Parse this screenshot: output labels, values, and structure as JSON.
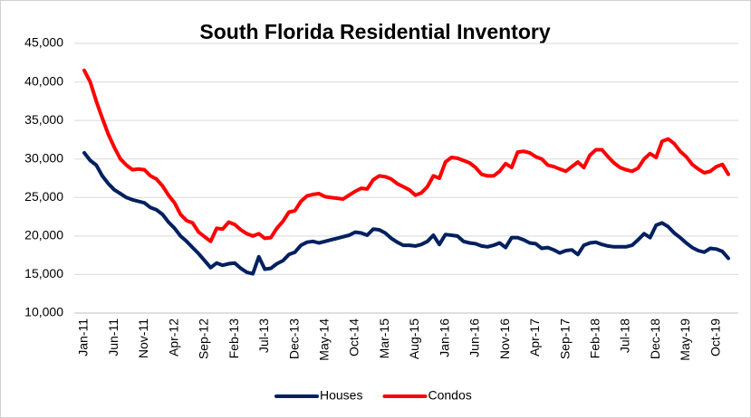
{
  "chart_data": {
    "type": "line",
    "title": "South Florida Residential Inventory",
    "categories": [
      "Jan-11",
      null,
      null,
      null,
      null,
      "Jun-11",
      null,
      null,
      null,
      null,
      "Nov-11",
      null,
      null,
      null,
      null,
      "Apr-12",
      null,
      null,
      null,
      null,
      "Sep-12",
      null,
      null,
      null,
      null,
      "Feb-13",
      null,
      null,
      null,
      null,
      "Jul-13",
      null,
      null,
      null,
      null,
      "Dec-13",
      null,
      null,
      null,
      null,
      "May-14",
      null,
      null,
      null,
      null,
      "Oct-14",
      null,
      null,
      null,
      null,
      "Mar-15",
      null,
      null,
      null,
      null,
      "Aug-15",
      null,
      null,
      null,
      null,
      "Jan-16",
      null,
      null,
      null,
      null,
      "Jun-16",
      null,
      null,
      null,
      null,
      "Nov-16",
      null,
      null,
      null,
      null,
      "Apr-17",
      null,
      null,
      null,
      null,
      "Sep-17",
      null,
      null,
      null,
      null,
      "Feb-18",
      null,
      null,
      null,
      null,
      "Jul-18",
      null,
      null,
      null,
      null,
      "Dec-18",
      null,
      null,
      null,
      null,
      "May-19",
      null,
      null,
      null,
      null,
      "Oct-19",
      null,
      null
    ],
    "series": [
      {
        "name": "Houses",
        "color": "#002060",
        "values": [
          30800,
          29800,
          29200,
          27800,
          26800,
          26000,
          25500,
          25000,
          24700,
          24500,
          24300,
          23700,
          23400,
          22800,
          21800,
          21000,
          20000,
          19300,
          18500,
          17700,
          16800,
          15900,
          16500,
          16200,
          16400,
          16500,
          15800,
          15300,
          15100,
          17300,
          15700,
          15800,
          16400,
          16800,
          17600,
          17900,
          18800,
          19200,
          19300,
          19100,
          19300,
          19500,
          19700,
          19900,
          20100,
          20500,
          20400,
          20100,
          20900,
          20800,
          20400,
          19700,
          19200,
          18800,
          18800,
          18700,
          18900,
          19300,
          20100,
          18900,
          20200,
          20100,
          20000,
          19300,
          19100,
          19000,
          18700,
          18600,
          18800,
          19100,
          18500,
          19800,
          19800,
          19500,
          19100,
          19000,
          18400,
          18500,
          18200,
          17800,
          18100,
          18200,
          17600,
          18800,
          19100,
          19200,
          18900,
          18700,
          18600,
          18600,
          18600,
          18800,
          19500,
          20300,
          19800,
          21400,
          21700,
          21200,
          20400,
          19800,
          19100,
          18500,
          18100,
          17900,
          18400,
          18300,
          18000,
          17100
        ]
      },
      {
        "name": "Condos",
        "color": "#ff0000",
        "values": [
          41500,
          40000,
          37500,
          35300,
          33200,
          31500,
          30000,
          29200,
          28600,
          28700,
          28600,
          27800,
          27400,
          26500,
          25300,
          24300,
          22800,
          22000,
          21700,
          20500,
          19900,
          19300,
          21000,
          20900,
          21800,
          21500,
          20800,
          20300,
          20000,
          20300,
          19700,
          19800,
          21000,
          21900,
          23100,
          23300,
          24500,
          25200,
          25400,
          25500,
          25100,
          25000,
          24900,
          24800,
          25300,
          25800,
          26200,
          26100,
          27300,
          27800,
          27700,
          27400,
          26800,
          26400,
          26000,
          25300,
          25600,
          26400,
          27800,
          27500,
          29600,
          30200,
          30100,
          29800,
          29500,
          28900,
          28000,
          27800,
          27800,
          28400,
          29400,
          28900,
          30900,
          31000,
          30800,
          30300,
          30000,
          29200,
          29000,
          28700,
          28400,
          29000,
          29600,
          28900,
          30500,
          31200,
          31200,
          30300,
          29500,
          28900,
          28600,
          28400,
          28800,
          30000,
          30700,
          30200,
          32300,
          32600,
          32000,
          31000,
          30300,
          29300,
          28700,
          28200,
          28400,
          29000,
          29300,
          28000
        ]
      }
    ],
    "ylim": [
      10000,
      45000
    ],
    "yticks": [
      {
        "value": 10000,
        "label": "10,000"
      },
      {
        "value": 15000,
        "label": "15,000"
      },
      {
        "value": 20000,
        "label": "20,000"
      },
      {
        "value": 25000,
        "label": "25,000"
      },
      {
        "value": 30000,
        "label": "30,000"
      },
      {
        "value": 35000,
        "label": "35,000"
      },
      {
        "value": 40000,
        "label": "40,000"
      },
      {
        "value": 45000,
        "label": "45,000"
      }
    ],
    "grid": true,
    "legend": "bottom"
  }
}
